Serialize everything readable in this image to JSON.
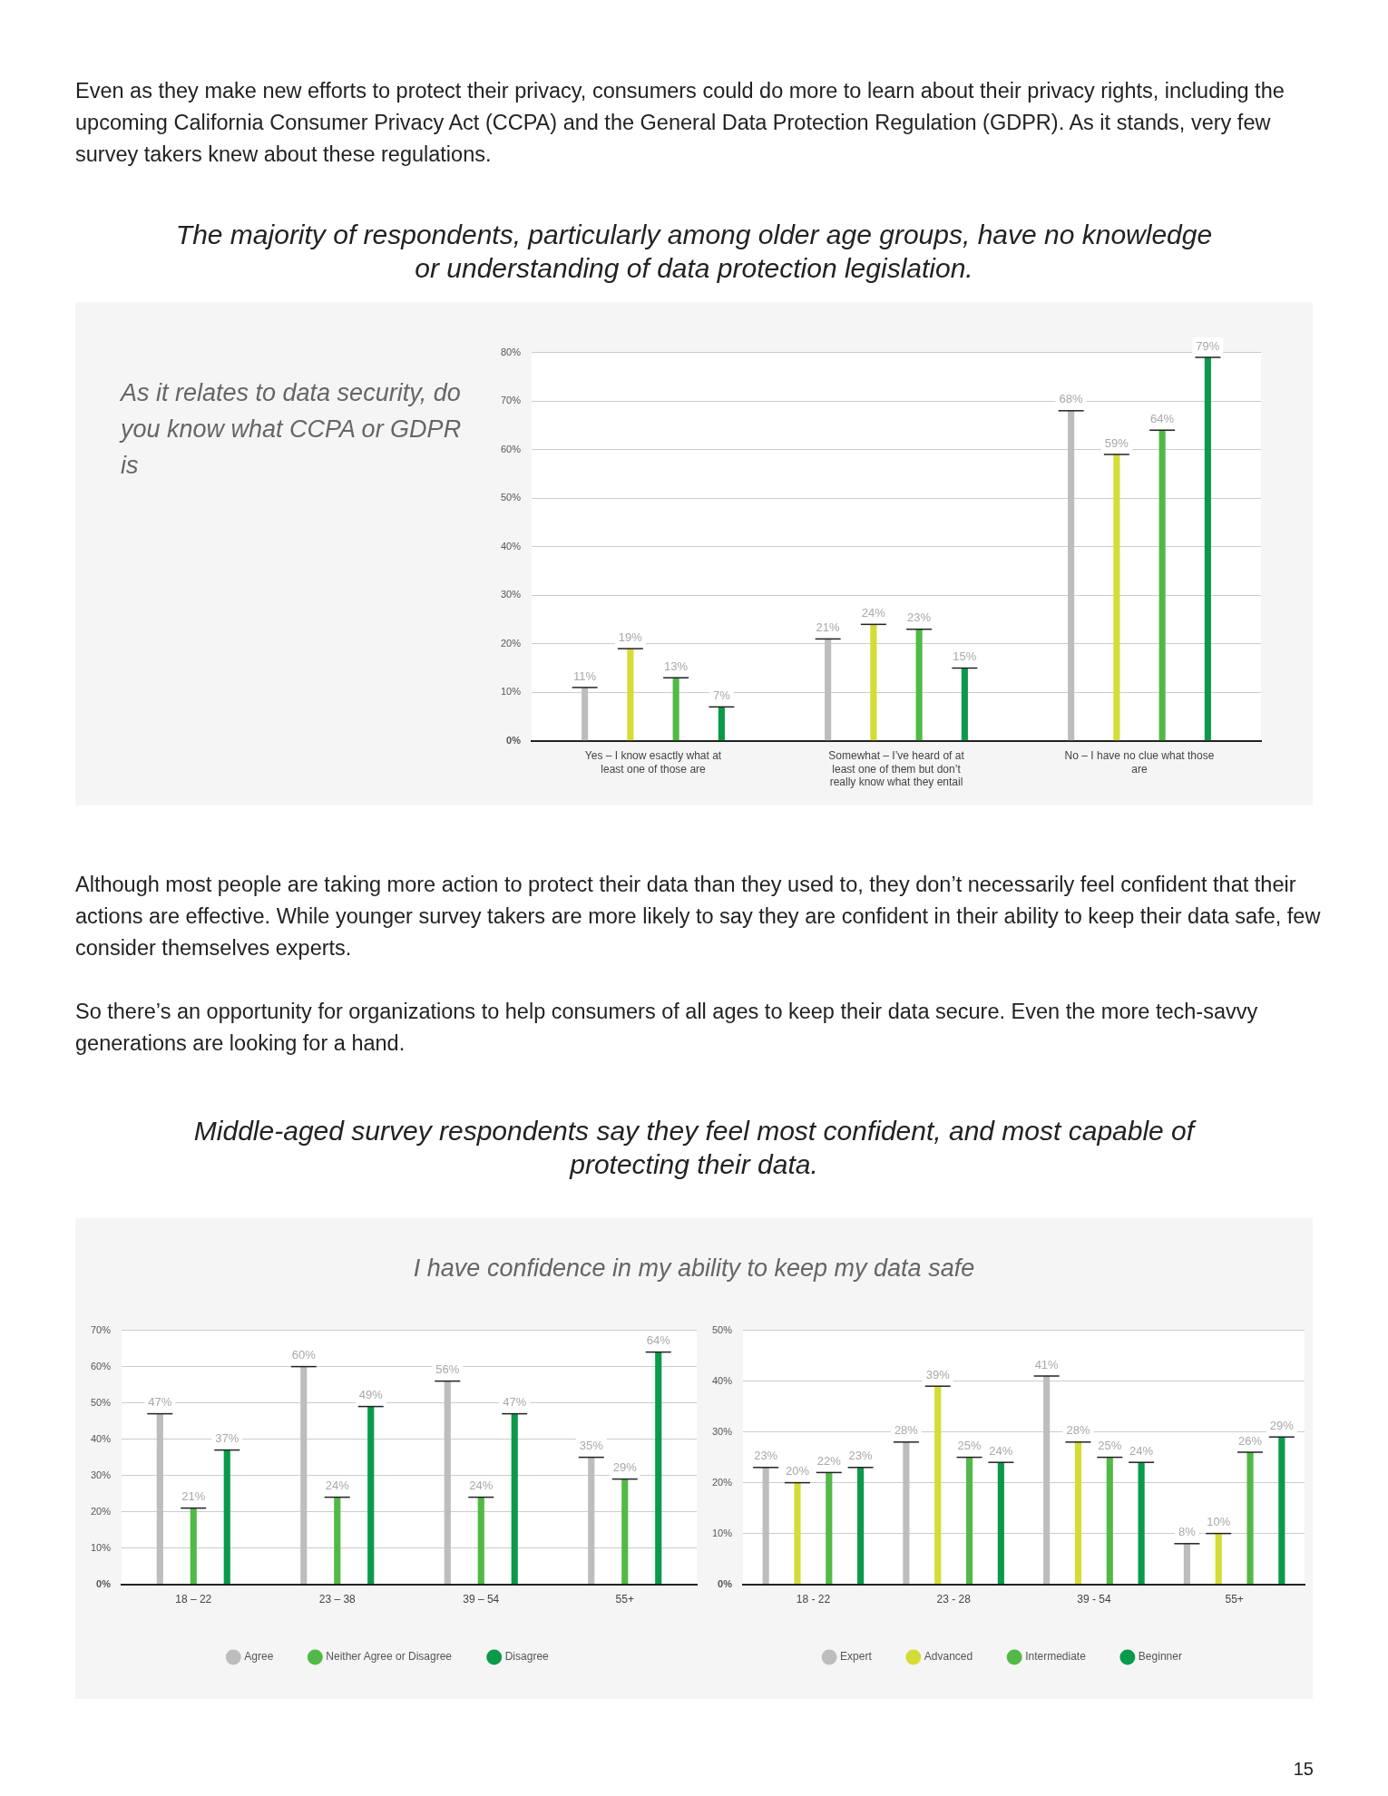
{
  "chart_data": [
    {
      "type": "bar",
      "title": "The majority of respondents, particularly among older age groups, have no knowledge or understanding of data protection legislation.",
      "subtitle": "As it relates to data security, do you know what CCPA or GDPR is",
      "annotations": [
        "Even as they make new efforts to protect their privacy, consumers could do more to learn about their privacy rights, including the upcoming California Consumer Privacy Act (CCPA) and the General Data Protection Regulation (GDPR). As it stands, very few survey takers knew about these regulations."
      ],
      "categories": [
        "Yes – I know esactly what at least one of those are",
        "Somewhat – I’ve heard of at least one of them but don’t really know what they entail",
        "No – I have no clue what those are"
      ],
      "series": [
        {
          "color": "#bdbdbd",
          "values": [
            11,
            21,
            68
          ],
          "value_labels": [
            "11%",
            "21%",
            "68%"
          ]
        },
        {
          "color": "#d4dc36",
          "values": [
            19,
            24,
            59
          ],
          "value_labels": [
            "19%",
            "24%",
            "59%"
          ]
        },
        {
          "color": "#52b947",
          "values": [
            13,
            23,
            64
          ],
          "value_labels": [
            "13%",
            "23%",
            "64%"
          ]
        },
        {
          "color": "#0a9a4a",
          "values": [
            7,
            15,
            79
          ],
          "value_labels": [
            "7%",
            "15%",
            "79%"
          ]
        }
      ],
      "ylim": [
        0,
        80
      ],
      "yticks": [
        {
          "value": 0,
          "label": "0%"
        },
        {
          "value": 10,
          "label": "10%"
        },
        {
          "value": 20,
          "label": "20%"
        },
        {
          "value": 30,
          "label": "30%"
        },
        {
          "value": 40,
          "label": "40%"
        },
        {
          "value": 50,
          "label": "50%"
        },
        {
          "value": 60,
          "label": "60%"
        },
        {
          "value": 70,
          "label": "70%"
        },
        {
          "value": 80,
          "label": "80%"
        }
      ],
      "grid": "y"
    },
    {
      "type": "bar",
      "title": "Middle-aged survey respondents say they feel most confident, and most capable of protecting their data.",
      "subtitle": "I have confidence in my ability to keep my data safe",
      "annotations": [
        "Although most people are taking more action to protect their data than they used to, they don’t necessarily feel confident that their actions are effective. While younger survey takers are more likely to say they are confident in their ability to keep their data safe, few consider themselves experts.",
        "So there’s an opportunity for organizations to help consumers of all ages to keep their data secure. Even the more tech-savvy generations are looking for a hand."
      ],
      "categories": [
        "18 – 22",
        "23 – 38",
        "39 – 54",
        "55+"
      ],
      "series": [
        {
          "name": "Agree",
          "color": "#bdbdbd",
          "values": [
            47,
            60,
            56,
            35
          ],
          "value_labels": [
            "47%",
            "60%",
            "56%",
            "35%"
          ]
        },
        {
          "name": "Neither Agree or Disagree",
          "color": "#52b947",
          "values": [
            21,
            24,
            24,
            29
          ],
          "value_labels": [
            "21%",
            "24%",
            "24%",
            "29%"
          ]
        },
        {
          "name": "Disagree",
          "color": "#0a9a4a",
          "values": [
            37,
            49,
            47,
            64
          ],
          "value_labels": [
            "37%",
            "49%",
            "47%",
            "64%"
          ]
        }
      ],
      "ylim": [
        0,
        70
      ],
      "yticks": [
        {
          "value": 0,
          "label": "0%"
        },
        {
          "value": 10,
          "label": "10%"
        },
        {
          "value": 20,
          "label": "20%"
        },
        {
          "value": 30,
          "label": "30%"
        },
        {
          "value": 40,
          "label": "40%"
        },
        {
          "value": 50,
          "label": "50%"
        },
        {
          "value": 60,
          "label": "60%"
        },
        {
          "value": 70,
          "label": "70%"
        }
      ],
      "grid": "y",
      "legend": "bottom"
    },
    {
      "type": "bar",
      "annotations": [
        "15"
      ],
      "categories": [
        "18 - 22",
        "23 - 28",
        "39 - 54",
        "55+"
      ],
      "series": [
        {
          "name": "Expert",
          "color": "#bdbdbd",
          "values": [
            23,
            28,
            41,
            8
          ],
          "value_labels": [
            "23%",
            "28%",
            "41%",
            "8%"
          ]
        },
        {
          "name": "Advanced",
          "color": "#d4dc36",
          "values": [
            20,
            39,
            28,
            10
          ],
          "value_labels": [
            "20%",
            "39%",
            "28%",
            "10%"
          ]
        },
        {
          "name": "Intermediate",
          "color": "#52b947",
          "values": [
            22,
            25,
            25,
            26
          ],
          "value_labels": [
            "22%",
            "25%",
            "25%",
            "26%"
          ]
        },
        {
          "name": "Beginner",
          "color": "#0a9a4a",
          "values": [
            23,
            24,
            24,
            29
          ],
          "value_labels": [
            "23%",
            "24%",
            "24%",
            "29%"
          ]
        }
      ],
      "ylim": [
        0,
        50
      ],
      "yticks": [
        {
          "value": 0,
          "label": "0%"
        },
        {
          "value": 10,
          "label": "10%"
        },
        {
          "value": 20,
          "label": "20%"
        },
        {
          "value": 30,
          "label": "30%"
        },
        {
          "value": 40,
          "label": "40%"
        },
        {
          "value": 50,
          "label": "50%"
        }
      ],
      "grid": "y",
      "legend": "bottom"
    }
  ]
}
